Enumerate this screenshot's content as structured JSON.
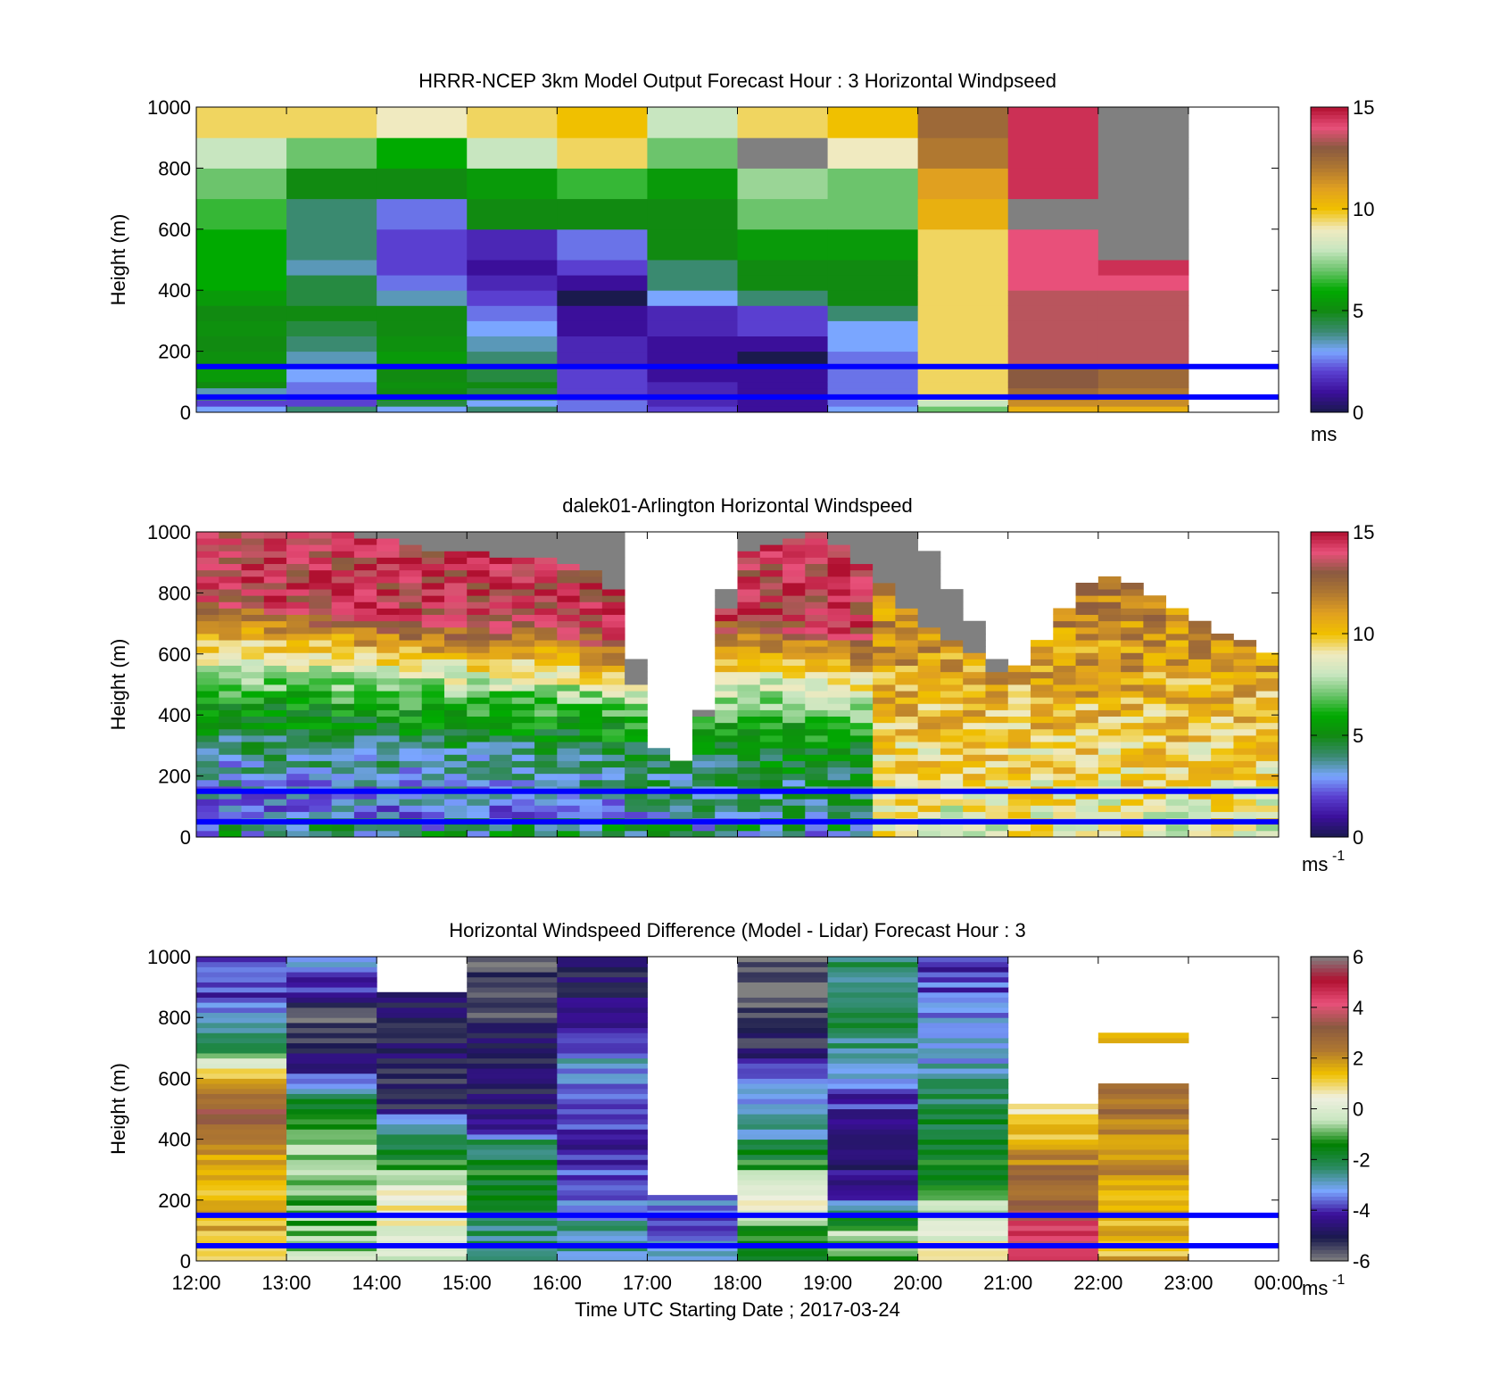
{
  "chart_data": [
    {
      "type": "heatmap",
      "title": "HRRR-NCEP 3km Model Output   Forecast Hour : 3 Horizontal Windpseed",
      "ylabel": "Height (m)",
      "ylim": [
        0,
        1000
      ],
      "yticks": [
        "0",
        "200",
        "400",
        "600",
        "800",
        "1000"
      ],
      "x_hours": [
        12,
        24
      ],
      "clim": [
        0,
        15
      ],
      "colorbar_ticks": [
        "0",
        "5",
        "10",
        "15"
      ],
      "colorbar_unit": "ms",
      "colorbar_sup": "",
      "reference_heights_m": [
        150,
        50
      ],
      "cell_hours": 1,
      "heights_m": [
        0,
        20,
        40,
        60,
        80,
        100,
        150,
        200,
        250,
        300,
        350,
        400,
        450,
        500,
        600,
        700,
        800,
        900,
        1000
      ],
      "columns": [
        [
          3,
          2,
          4,
          3.5,
          5,
          5.5,
          5.2,
          5,
          5.2,
          5,
          5.5,
          6,
          6,
          6,
          6.5,
          7,
          8,
          9.5
        ],
        [
          4,
          2,
          2,
          2.5,
          2.5,
          3,
          3.5,
          4,
          4.5,
          5,
          4.5,
          4.5,
          3.5,
          4,
          4,
          5,
          7,
          9.5
        ],
        [
          3,
          4.5,
          5.5,
          5,
          5.2,
          5,
          5.5,
          5.2,
          5,
          5,
          3.5,
          2.5,
          2,
          2,
          2.5,
          5,
          6,
          9
        ],
        [
          4,
          3,
          4,
          4.5,
          5,
          4.5,
          4,
          3.5,
          3,
          2.5,
          2,
          1.5,
          1,
          1.5,
          5,
          5.5,
          8,
          9.5
        ],
        [
          2.5,
          2.5,
          2,
          2,
          2,
          2,
          1.5,
          1.5,
          1,
          1,
          0,
          1,
          2,
          2.5,
          5,
          6.5,
          9.5,
          10
        ],
        [
          2,
          1.5,
          1.5,
          1.5,
          1.5,
          1,
          1,
          1,
          1.5,
          1.5,
          3,
          4,
          4,
          5,
          5,
          5.5,
          7,
          8
        ],
        [
          1,
          1,
          1,
          1,
          1,
          1,
          0,
          1,
          2,
          2,
          4,
          5,
          5,
          5.5,
          7,
          7.5,
          0,
          9.5
        ],
        [
          3,
          2.5,
          2.5,
          2.5,
          2.5,
          2.5,
          2.5,
          3,
          3,
          4,
          5,
          5,
          5,
          5.5,
          7,
          7,
          9,
          10
        ],
        [
          7,
          8,
          9,
          9.5,
          9.5,
          9.5,
          9.5,
          9.5,
          9.5,
          9.5,
          9.5,
          9.5,
          9.5,
          9.5,
          10.5,
          11,
          12,
          12.5
        ],
        [
          10.5,
          11.5,
          12,
          12.5,
          13,
          13,
          13.5,
          13.5,
          13.5,
          13.5,
          13.5,
          14,
          14,
          14,
          0,
          14.5,
          14.5,
          14.5
        ],
        [
          10.5,
          11.5,
          11.5,
          12,
          12.5,
          12.5,
          13.5,
          13.5,
          13.5,
          13.5,
          13.5,
          14,
          14.5,
          0,
          0,
          0,
          0,
          0
        ],
        [
          null,
          null,
          null,
          null,
          null,
          null,
          null,
          null,
          null,
          null,
          null,
          null,
          null,
          null,
          null,
          null,
          null,
          null
        ]
      ]
    },
    {
      "type": "heatmap",
      "title": "dalek01-Arlington  Horizontal Windspeed",
      "ylabel": "Height (m)",
      "ylim": [
        0,
        1000
      ],
      "yticks": [
        "0",
        "200",
        "400",
        "600",
        "800",
        "1000"
      ],
      "x_hours": [
        12,
        24
      ],
      "clim": [
        0,
        15
      ],
      "colorbar_ticks": [
        "0",
        "5",
        "10",
        "15"
      ],
      "colorbar_unit": "ms",
      "colorbar_sup": "-1",
      "reference_heights_m": [
        150,
        50
      ],
      "cell_hours": 0.25,
      "height_levels": 48,
      "profiles": [
        {
          "x": [
            12,
            12.5,
            13.5,
            15,
            16.3,
            16.7,
            17,
            17.5,
            18,
            19,
            20,
            21,
            22,
            24
          ],
          "top": [
            1000,
            1000,
            1000,
            1000,
            1000,
            1000,
            300,
            230,
            1000,
            1000,
            1000,
            520,
            880,
            580
          ],
          "gray": [
            1000,
            1000,
            1000,
            930,
            900,
            780,
            300,
            230,
            930,
            1000,
            720,
            520,
            880,
            580
          ]
        },
        {
          "x": [
            12,
            13,
            14,
            15,
            16,
            17,
            18,
            19,
            20,
            21,
            22,
            23,
            24
          ],
          "ew": [
            1,
            1,
            1,
            1,
            1,
            2,
            3,
            3,
            3,
            3,
            2,
            1,
            1
          ]
        },
        {
          "x": [
            12,
            13,
            14,
            15,
            16,
            17,
            18,
            19,
            20,
            21,
            22,
            23,
            24
          ],
          "jet": [
            780,
            760,
            720,
            700,
            690,
            650,
            760,
            720,
            650,
            500,
            560,
            560,
            620
          ]
        }
      ]
    },
    {
      "type": "heatmap",
      "title": "Horizontal Windspeed Difference (Model - Lidar) Forecast Hour : 3",
      "xlabel": "Time UTC  Starting Date ; 2017-03-24",
      "ylabel": "Height (m)",
      "ylim": [
        0,
        1000
      ],
      "yticks": [
        "0",
        "200",
        "400",
        "600",
        "800",
        "1000"
      ],
      "x_hours": [
        12,
        24
      ],
      "xticks": [
        "12:00",
        "13:00",
        "14:00",
        "15:00",
        "16:00",
        "17:00",
        "18:00",
        "19:00",
        "20:00",
        "21:00",
        "22:00",
        "23:00",
        "00:00"
      ],
      "clim": [
        -6,
        6
      ],
      "colorbar_ticks": [
        "-6",
        "-4",
        "-2",
        "0",
        "2",
        "4",
        "6"
      ],
      "colorbar_unit": "ms",
      "colorbar_sup": "-1",
      "reference_heights_m": [
        150,
        50
      ],
      "cell_hours": 1,
      "hour_blocks": [
        {
          "x0": 12,
          "x1": 13,
          "points": [
            [
              0,
              1.5
            ],
            [
              150,
              1.5
            ],
            [
              300,
              1.2
            ],
            [
              400,
              2.5
            ],
            [
              500,
              3
            ],
            [
              600,
              1.5
            ],
            [
              650,
              0
            ],
            [
              700,
              -2
            ],
            [
              800,
              -3
            ],
            [
              900,
              -4
            ],
            [
              1000,
              -3.5
            ]
          ]
        },
        {
          "x0": 13,
          "x1": 14,
          "points": [
            [
              0,
              -0.5
            ],
            [
              150,
              -1
            ],
            [
              300,
              -0.5
            ],
            [
              400,
              -0.8
            ],
            [
              500,
              -1.5
            ],
            [
              560,
              -3
            ],
            [
              620,
              -4
            ],
            [
              700,
              -5
            ],
            [
              800,
              -5.5
            ],
            [
              900,
              -4
            ],
            [
              1000,
              -3
            ]
          ]
        },
        {
          "x0": 14,
          "x1": 15,
          "points": [
            [
              0,
              0
            ],
            [
              200,
              0.5
            ],
            [
              300,
              -1
            ],
            [
              400,
              -2.5
            ],
            [
              460,
              -3
            ],
            [
              500,
              -5
            ],
            [
              880,
              null
            ],
            [
              1000,
              -3.5
            ]
          ]
        },
        {
          "x0": 15,
          "x1": 16,
          "points": [
            [
              0,
              -2.5
            ],
            [
              200,
              -2
            ],
            [
              300,
              -1.5
            ],
            [
              400,
              -2.5
            ],
            [
              430,
              -4
            ],
            [
              500,
              -5
            ],
            [
              700,
              -5
            ],
            [
              900,
              -5.5
            ],
            [
              1000,
              -5.8
            ]
          ]
        },
        {
          "x0": 16,
          "x1": 17,
          "points": [
            [
              0,
              -3
            ],
            [
              100,
              -2.5
            ],
            [
              200,
              -3.5
            ],
            [
              300,
              -4
            ],
            [
              500,
              -4
            ],
            [
              650,
              -3
            ],
            [
              800,
              -4.5
            ],
            [
              1000,
              -5
            ]
          ]
        },
        {
          "x0": 17,
          "x1": 18,
          "points": [
            [
              0,
              -3
            ],
            [
              100,
              -3.5
            ],
            [
              200,
              -3.5
            ],
            [
              220,
              null
            ],
            [
              1000,
              null
            ]
          ]
        },
        {
          "x0": 18,
          "x1": 19,
          "points": [
            [
              0,
              -2
            ],
            [
              100,
              -1.5
            ],
            [
              200,
              0.8
            ],
            [
              300,
              -1
            ],
            [
              400,
              -2.5
            ],
            [
              550,
              -3
            ],
            [
              620,
              -4
            ],
            [
              700,
              -5
            ],
            [
              880,
              -5.8
            ],
            [
              1000,
              null
            ]
          ]
        },
        {
          "x0": 19,
          "x1": 20,
          "points": [
            [
              0,
              -1
            ],
            [
              100,
              -0.5
            ],
            [
              200,
              -3.5
            ],
            [
              300,
              -4.5
            ],
            [
              550,
              -4
            ],
            [
              650,
              -3
            ],
            [
              800,
              -2
            ],
            [
              1000,
              -2.5
            ]
          ]
        },
        {
          "x0": 20,
          "x1": 21,
          "points": [
            [
              0,
              1
            ],
            [
              150,
              -0.5
            ],
            [
              300,
              -1.5
            ],
            [
              500,
              -2
            ],
            [
              650,
              -3
            ],
            [
              800,
              -3.5
            ],
            [
              1000,
              -4
            ]
          ]
        },
        {
          "x0": 21,
          "x1": 22,
          "points": [
            [
              0,
              4.5
            ],
            [
              150,
              4
            ],
            [
              200,
              3
            ],
            [
              300,
              2.5
            ],
            [
              400,
              1.5
            ],
            [
              500,
              1
            ],
            [
              510,
              null
            ],
            [
              1000,
              null
            ]
          ]
        },
        {
          "x0": 22,
          "x1": 23,
          "points": [
            [
              0,
              1.5
            ],
            [
              150,
              1.5
            ],
            [
              300,
              2
            ],
            [
              500,
              2.5
            ],
            [
              570,
              2.5
            ],
            [
              580,
              null
            ],
            [
              710,
              null
            ],
            [
              720,
              2
            ],
            [
              750,
              null
            ],
            [
              1000,
              null
            ]
          ]
        },
        {
          "x0": 23,
          "x1": 24,
          "points": [
            [
              0,
              null
            ],
            [
              1000,
              null
            ]
          ]
        }
      ]
    }
  ],
  "colors": {
    "speed_colormap": [
      "#1a1a4d",
      "#3b0f9a",
      "#5a3fd0",
      "#7aa6ff",
      "#3a8a70",
      "#118a11",
      "#00aa00",
      "#6cc46c",
      "#c8e6c0",
      "#f0eac0",
      "#f0c000",
      "#e0a020",
      "#b07830",
      "#8a5a40",
      "#e8507a",
      "#b01030"
    ],
    "diff_colormap": [
      "#808080",
      "#1a1a4d",
      "#3b0f9a",
      "#7aa6ff",
      "#2a8a60",
      "#008000",
      "#c8e6c0",
      "#f0f0e0",
      "#f0c000",
      "#b07830",
      "#8a5a40",
      "#e8507a",
      "#b01030",
      "#808080"
    ],
    "reference_line": "#0000ff",
    "missing_high": "#808080"
  }
}
